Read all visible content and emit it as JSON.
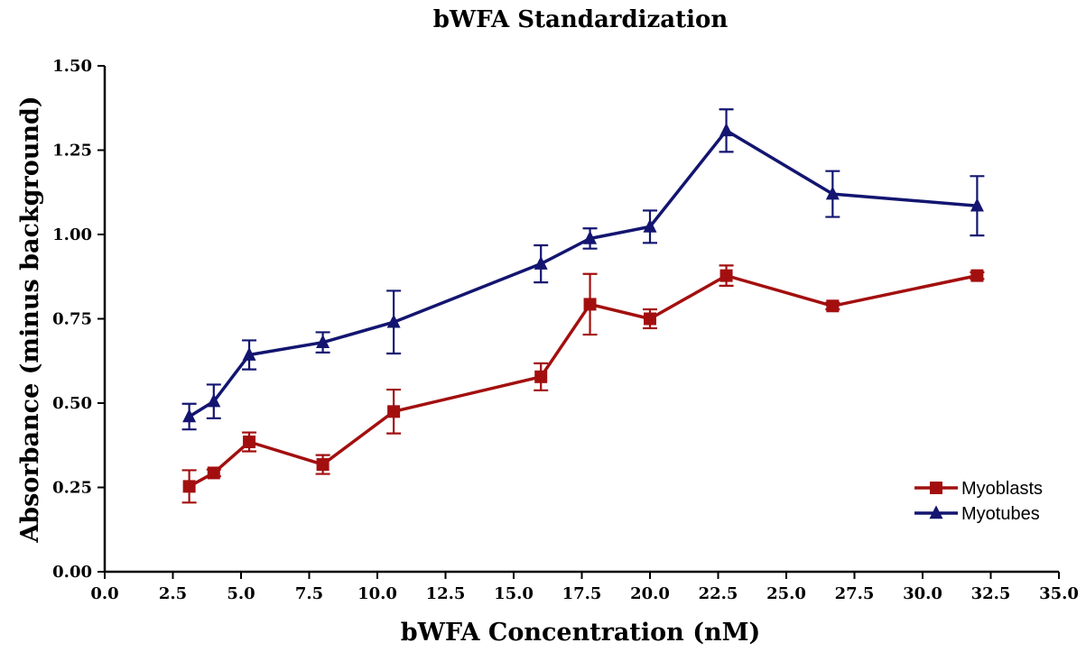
{
  "chart_data": {
    "type": "line",
    "title": "bWFA Standardization",
    "xlabel": "bWFA Concentration (nM)",
    "ylabel": "Absorbance (minus background)",
    "xlim": [
      0.0,
      35.0
    ],
    "ylim": [
      0.0,
      1.5
    ],
    "xticks": [
      "0.0",
      "2.5",
      "5.0",
      "7.5",
      "10.0",
      "12.5",
      "15.0",
      "17.5",
      "20.0",
      "22.5",
      "25.0",
      "27.5",
      "30.0",
      "32.5",
      "35.0"
    ],
    "yticks": [
      "0.00",
      "0.25",
      "0.50",
      "0.75",
      "1.00",
      "1.25",
      "1.50"
    ],
    "xtick_values": [
      0,
      2.5,
      5,
      7.5,
      10,
      12.5,
      15,
      17.5,
      20,
      22.5,
      25,
      27.5,
      30,
      32.5,
      35
    ],
    "ytick_values": [
      0,
      0.25,
      0.5,
      0.75,
      1.0,
      1.25,
      1.5
    ],
    "grid": false,
    "legend_position": "bottom-right",
    "series": [
      {
        "name": "Myoblasts",
        "color": "#A30F0F",
        "marker": "square",
        "x": [
          3.1,
          4.0,
          5.3,
          8.0,
          10.6,
          16.0,
          17.8,
          20.0,
          22.8,
          26.7,
          32.0
        ],
        "y": [
          0.253,
          0.293,
          0.385,
          0.318,
          0.475,
          0.578,
          0.793,
          0.75,
          0.878,
          0.788,
          0.878
        ],
        "error": [
          0.048,
          0.01,
          0.028,
          0.028,
          0.065,
          0.04,
          0.09,
          0.028,
          0.03,
          0.01,
          0.01
        ]
      },
      {
        "name": "Myotubes",
        "color": "#131570",
        "marker": "triangle",
        "x": [
          3.1,
          4.0,
          5.3,
          8.0,
          10.6,
          16.0,
          17.8,
          20.0,
          22.8,
          26.7,
          32.0
        ],
        "y": [
          0.46,
          0.505,
          0.643,
          0.68,
          0.74,
          0.913,
          0.988,
          1.023,
          1.308,
          1.12,
          1.085
        ],
        "error": [
          0.038,
          0.05,
          0.043,
          0.03,
          0.093,
          0.055,
          0.03,
          0.048,
          0.063,
          0.068,
          0.088
        ]
      }
    ]
  }
}
